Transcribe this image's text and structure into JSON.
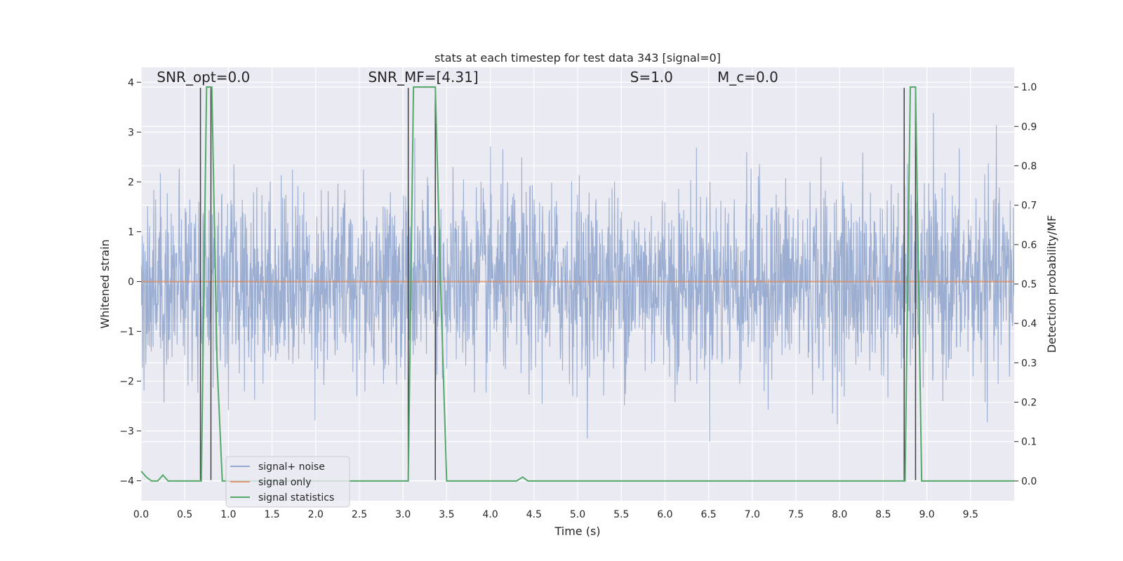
{
  "chart_data": {
    "type": "line",
    "title": "stats at each timestep for test data 343 [signal=0]",
    "xlabel": "Time (s)",
    "ylabel_left": "Whitened strain",
    "ylabel_right": "Detection probability/MF",
    "xlim": [
      0.0,
      10.0
    ],
    "ylim_left": [
      -4.4,
      4.3
    ],
    "ylim_right": [
      -0.05,
      1.05
    ],
    "x_ticks": [
      "0.0",
      "0.5",
      "1.0",
      "1.5",
      "2.0",
      "2.5",
      "3.0",
      "3.5",
      "4.0",
      "4.5",
      "5.0",
      "5.5",
      "6.0",
      "6.5",
      "7.0",
      "7.5",
      "8.0",
      "8.5",
      "9.0",
      "9.5"
    ],
    "y_ticks_left": [
      "−4",
      "−3",
      "−2",
      "−1",
      "0",
      "1",
      "2",
      "3",
      "4"
    ],
    "y_ticks_right": [
      "0.0",
      "0.1",
      "0.2",
      "0.3",
      "0.4",
      "0.5",
      "0.6",
      "0.7",
      "0.8",
      "0.9",
      "1.0"
    ],
    "grid": true,
    "legend_position": "bottom-left",
    "colors": {
      "background": "#eaeaf2",
      "grid": "#ffffff",
      "noise": "#4c72b0",
      "signal": "#dd8452",
      "stats": "#55a868",
      "vline": "#404040"
    },
    "annotations": [
      {
        "id": "snr-opt",
        "text": "SNR_opt=0.0",
        "x": 0.18,
        "y": 4.1
      },
      {
        "id": "snr-mf",
        "text": "SNR_MF=[4.31]",
        "x": 2.6,
        "y": 4.1
      },
      {
        "id": "s",
        "text": "S=1.0",
        "x": 5.6,
        "y": 4.1
      },
      {
        "id": "mc",
        "text": "M_c=0.0",
        "x": 6.6,
        "y": 4.1
      }
    ],
    "series": [
      {
        "name": "signal+ noise",
        "kind": "whitened-noise",
        "sigma": 0.95,
        "t_start": 0.0,
        "t_end": 10.0
      },
      {
        "name": "signal only",
        "kind": "constant",
        "value": 0.0
      },
      {
        "name": "signal statistics",
        "x": [
          0.0,
          0.06,
          0.12,
          0.19,
          0.25,
          0.31,
          0.5,
          0.56,
          0.68,
          0.69,
          0.75,
          0.81,
          0.87,
          0.93,
          1.5,
          3.06,
          3.12,
          3.37,
          3.43,
          3.5,
          4.3,
          4.37,
          4.43,
          8.74,
          8.75,
          8.81,
          8.87,
          8.94,
          10.0
        ],
        "y": [
          0.025,
          0.01,
          0.0,
          0.0,
          0.015,
          0.0,
          0.0,
          0.0,
          0.0,
          0.0,
          1.0,
          1.0,
          0.3,
          0.0,
          0.0,
          0.0,
          1.0,
          1.0,
          0.5,
          0.0,
          0.0,
          0.01,
          0.0,
          0.0,
          0.0,
          1.0,
          1.0,
          0.0,
          0.0
        ]
      }
    ],
    "vlines": [
      {
        "x": 0.68,
        "y_from": -4.0,
        "y_to": 4.0
      },
      {
        "x": 0.8,
        "y_from": -4.0,
        "y_to": 4.0
      },
      {
        "x": 3.06,
        "y_from": -4.0,
        "y_to": 4.0
      },
      {
        "x": 3.37,
        "y_from": -4.0,
        "y_to": 4.0
      },
      {
        "x": 8.74,
        "y_from": -4.0,
        "y_to": 4.0
      },
      {
        "x": 8.87,
        "y_from": -4.0,
        "y_to": 4.0
      }
    ]
  }
}
